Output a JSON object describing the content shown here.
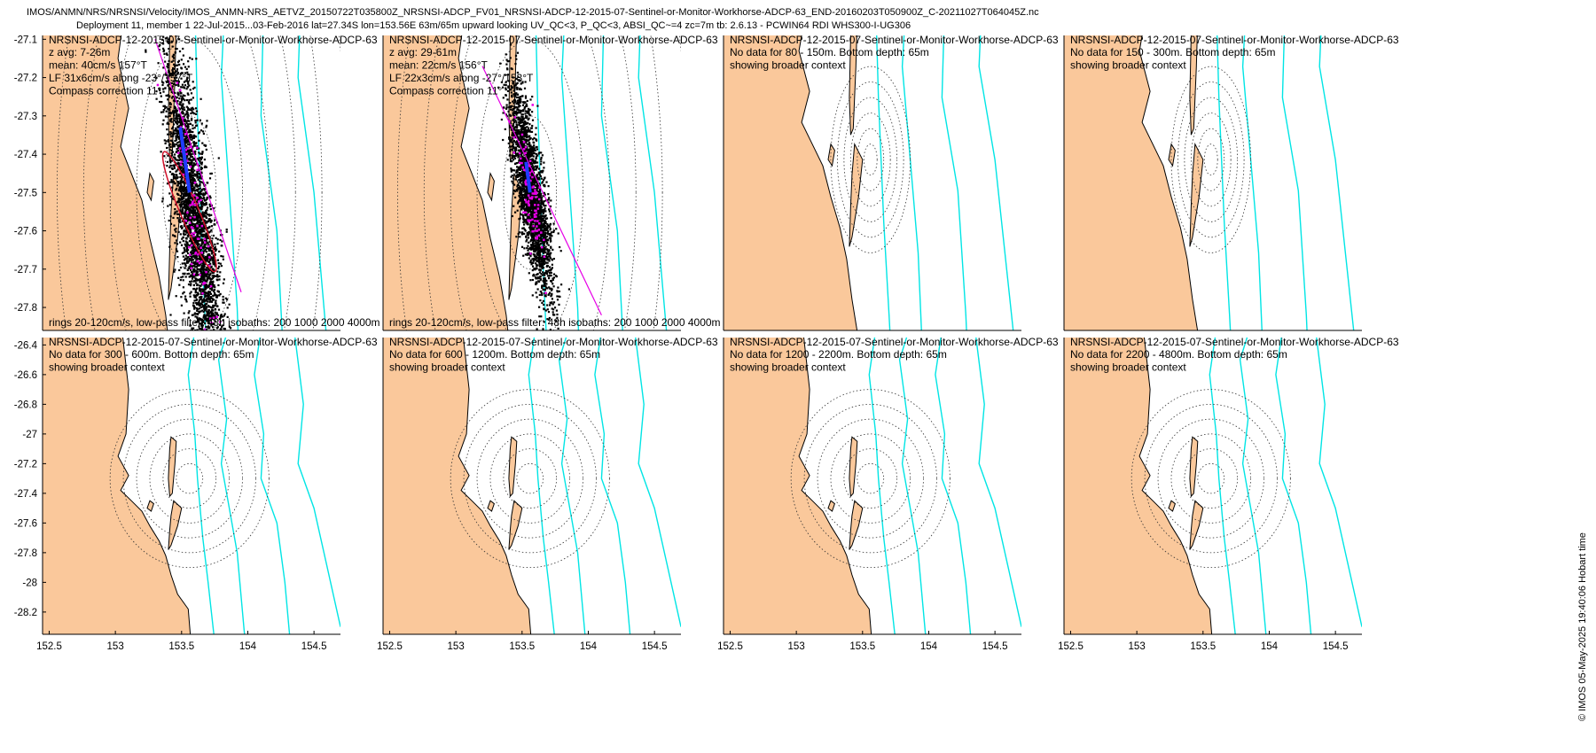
{
  "header": {
    "line1": "IMOS/ANMN/NRS/NRSNSI/Velocity/IMOS_ANMN-NRS_AETVZ_20150722T035800Z_NRSNSI-ADCP_FV01_NRSNSI-ADCP-12-2015-07-Sentinel-or-Monitor-Workhorse-ADCP-63_END-20160203T050900Z_C-20211027T064045Z.nc",
    "line2": "Deployment 11, member 1 22-Jul-2015...03-Feb-2016 lat=27.34S lon=153.56E 63m/65m upward looking UV_QC<3, P_QC<3, ABSI_QC~=4 zc=7m tb: 2.6.13 - PCWIN64 RDI WHS300-I-UG306"
  },
  "credit": "© IMOS 05-May-2025 19:40:06 Hobart time",
  "colors": {
    "land": "#fac89b",
    "isobath": "#00e5e5",
    "scatter": "#000000",
    "lowpass": "#e600e6",
    "mean_vector": "#1f3cff",
    "ellipse": "#d0102a",
    "rings": "#333333"
  },
  "chart_data": [
    {
      "type": "scatter",
      "row": 1,
      "title": "NRSNSI-ADCP-12-2015-07-Sentinel-or-Monitor-Workhorse-ADCP-63",
      "info": [
        "z avg: 7-26m",
        "mean: 40cm/s 157°T",
        "LF 31x6cm/s along -23°/157°T",
        "Compass correction 11°"
      ],
      "footer": "rings 20-120cm/s, low-pass filter: 48h isobaths: 200 1000 2000 4000m",
      "xlim": [
        152.45,
        154.7
      ],
      "ylim": [
        -27.86,
        -27.09
      ],
      "x_ticks": [],
      "y_ticks": [
        -27.1,
        -27.2,
        -27.3,
        -27.4,
        -27.5,
        -27.6,
        -27.7,
        -27.8
      ],
      "centre": [
        153.56,
        -27.5
      ],
      "rings_deg": [
        0.2,
        0.4,
        0.6,
        0.8,
        1.0,
        1.2
      ],
      "scatter": {
        "axis_deg": -23,
        "major_deg": 0.5,
        "minor_deg": 0.13,
        "offset_deg": 0.09,
        "points": 3200
      },
      "lowpass_line": [
        [
          153.3,
          -27.1
        ],
        [
          153.95,
          -27.76
        ]
      ],
      "mean_vector": [
        [
          153.56,
          -27.5
        ],
        [
          153.49,
          -27.33
        ]
      ],
      "ellipse": {
        "cx": 153.56,
        "cy": -27.55,
        "rx_deg": 0.07,
        "ry_deg": 0.17,
        "rot_deg": -23
      }
    },
    {
      "type": "scatter",
      "row": 1,
      "title": "NRSNSI-ADCP-12-2015-07-Sentinel-or-Monitor-Workhorse-ADCP-63",
      "info": [
        "z avg: 29-61m",
        "mean: 22cm/s 156°T",
        "LF 22x3cm/s along -27°/153°T",
        "Compass correction 11°"
      ],
      "footer": "rings 20-120cm/s, low-pass filter: 48h isobaths: 200 1000 2000 4000m",
      "xlim": [
        152.45,
        154.7
      ],
      "ylim": [
        -27.86,
        -27.09
      ],
      "x_ticks": [],
      "y_ticks": [],
      "centre": [
        153.56,
        -27.5
      ],
      "rings_deg": [
        0.2,
        0.4,
        0.6,
        0.8,
        1.0,
        1.2
      ],
      "scatter": {
        "axis_deg": -27,
        "major_deg": 0.3,
        "minor_deg": 0.09,
        "offset_deg": 0.0,
        "points": 2600
      },
      "lowpass_line": [
        [
          153.2,
          -27.17
        ],
        [
          154.1,
          -27.82
        ]
      ],
      "mean_vector": [
        [
          153.56,
          -27.5
        ],
        [
          153.53,
          -27.42
        ]
      ]
    },
    {
      "type": "scatter",
      "row": 1,
      "title": "NRSNSI-ADCP-12-2015-07-Sentinel-or-Monitor-Workhorse-ADCP-63",
      "info": [
        "No data for 80 - 150m. Bottom depth: 65m",
        "showing broader context"
      ],
      "xlim": [
        152.45,
        154.7
      ],
      "ylim": [
        -28.05,
        -27.1
      ],
      "x_ticks": [],
      "y_ticks": [],
      "centre": [
        153.56,
        -27.5
      ],
      "rings_deg": [
        0.05,
        0.1,
        0.15,
        0.2,
        0.25,
        0.3
      ]
    },
    {
      "type": "scatter",
      "row": 1,
      "title": "NRSNSI-ADCP-12-2015-07-Sentinel-or-Monitor-Workhorse-ADCP-63",
      "info": [
        "No data for 150 - 300m. Bottom depth: 65m",
        "showing broader context"
      ],
      "xlim": [
        152.45,
        154.7
      ],
      "ylim": [
        -28.05,
        -27.1
      ],
      "x_ticks": [],
      "y_ticks": [],
      "centre": [
        153.56,
        -27.5
      ],
      "rings_deg": [
        0.05,
        0.1,
        0.15,
        0.2,
        0.25,
        0.3
      ]
    },
    {
      "type": "scatter",
      "row": 2,
      "title": "NRSNSI-ADCP-12-2015-07-Sentinel-or-Monitor-Workhorse-ADCP-63",
      "info": [
        "No data for 300 - 600m. Bottom depth: 65m",
        "showing broader context"
      ],
      "xlim": [
        152.45,
        154.7
      ],
      "ylim": [
        -28.35,
        -26.35
      ],
      "x_ticks": [
        152.5,
        153,
        153.5,
        154,
        154.5
      ],
      "y_ticks": [
        -26.4,
        -26.6,
        -26.8,
        -27,
        -27.2,
        -27.4,
        -27.6,
        -27.8,
        -28,
        -28.2
      ],
      "centre": [
        153.56,
        -27.3
      ],
      "rings_deg": [
        0.1,
        0.2,
        0.3,
        0.4,
        0.5,
        0.6
      ]
    },
    {
      "type": "scatter",
      "row": 2,
      "title": "NRSNSI-ADCP-12-2015-07-Sentinel-or-Monitor-Workhorse-ADCP-63",
      "info": [
        "No data for 600 - 1200m. Bottom depth: 65m",
        "showing broader context"
      ],
      "xlim": [
        152.45,
        154.7
      ],
      "ylim": [
        -28.35,
        -26.35
      ],
      "x_ticks": [
        152.5,
        153,
        153.5,
        154,
        154.5
      ],
      "y_ticks": [],
      "centre": [
        153.56,
        -27.3
      ],
      "rings_deg": [
        0.1,
        0.2,
        0.3,
        0.4,
        0.5,
        0.6
      ]
    },
    {
      "type": "scatter",
      "row": 2,
      "title": "NRSNSI-ADCP-12-2015-07-Sentinel-or-Monitor-Workhorse-ADCP-63",
      "info": [
        "No data for 1200 - 2200m. Bottom depth: 65m",
        "showing broader context"
      ],
      "xlim": [
        152.45,
        154.7
      ],
      "ylim": [
        -28.35,
        -26.35
      ],
      "x_ticks": [
        152.5,
        153,
        153.5,
        154,
        154.5
      ],
      "y_ticks": [],
      "centre": [
        153.56,
        -27.3
      ],
      "rings_deg": [
        0.1,
        0.2,
        0.3,
        0.4,
        0.5,
        0.6
      ]
    },
    {
      "type": "scatter",
      "row": 2,
      "title": "NRSNSI-ADCP-12-2015-07-Sentinel-or-Monitor-Workhorse-ADCP-63",
      "info": [
        "No data for 2200 - 4800m. Bottom depth: 65m",
        "showing broader context"
      ],
      "xlim": [
        152.45,
        154.7
      ],
      "ylim": [
        -28.35,
        -26.35
      ],
      "x_ticks": [
        152.5,
        153,
        153.5,
        154,
        154.5
      ],
      "y_ticks": [],
      "centre": [
        153.56,
        -27.3
      ],
      "rings_deg": [
        0.1,
        0.2,
        0.3,
        0.4,
        0.5,
        0.6
      ]
    }
  ]
}
